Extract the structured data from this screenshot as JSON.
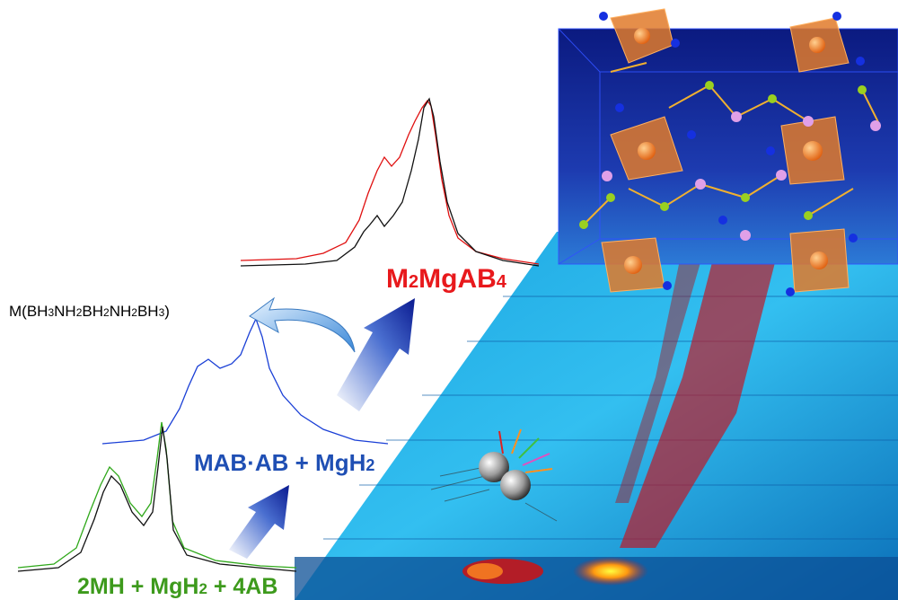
{
  "labels": {
    "product": {
      "pre": "M",
      "sub1": "2",
      "mid": "MgAB",
      "sub2": "4"
    },
    "intermediate": {
      "text": "MAB·AB + MgH",
      "sub": "2"
    },
    "start": {
      "pre": "2MH + MgH",
      "sub": "2",
      "post": " + 4AB"
    },
    "polymer": {
      "pre": "M(BH",
      "s1": "3",
      "a": "NH",
      "s2": "2",
      "b": "BH",
      "s3": "2",
      "c": "NH",
      "s4": "2",
      "d": "BH",
      "s5": "3",
      "e": ")"
    }
  },
  "colors": {
    "product": "#e8191c",
    "intermediate": "#1f4fb4",
    "start": "#3d9a1c",
    "polymer": "#000000",
    "spectrum_black": "#111111",
    "spectrum_red": "#e01010",
    "spectrum_blue": "#1a3fd6",
    "spectrum_green": "#2fa81a",
    "background_map": "#29b3e6",
    "crystal_box": "#0d1f8a",
    "tetrahedra": "#e07a2a"
  },
  "icons": [
    "curved-arrow-icon",
    "up-arrow-icon",
    "up-arrow-icon-small",
    "ball-mill-icon",
    "crystal-structure-icon"
  ]
}
